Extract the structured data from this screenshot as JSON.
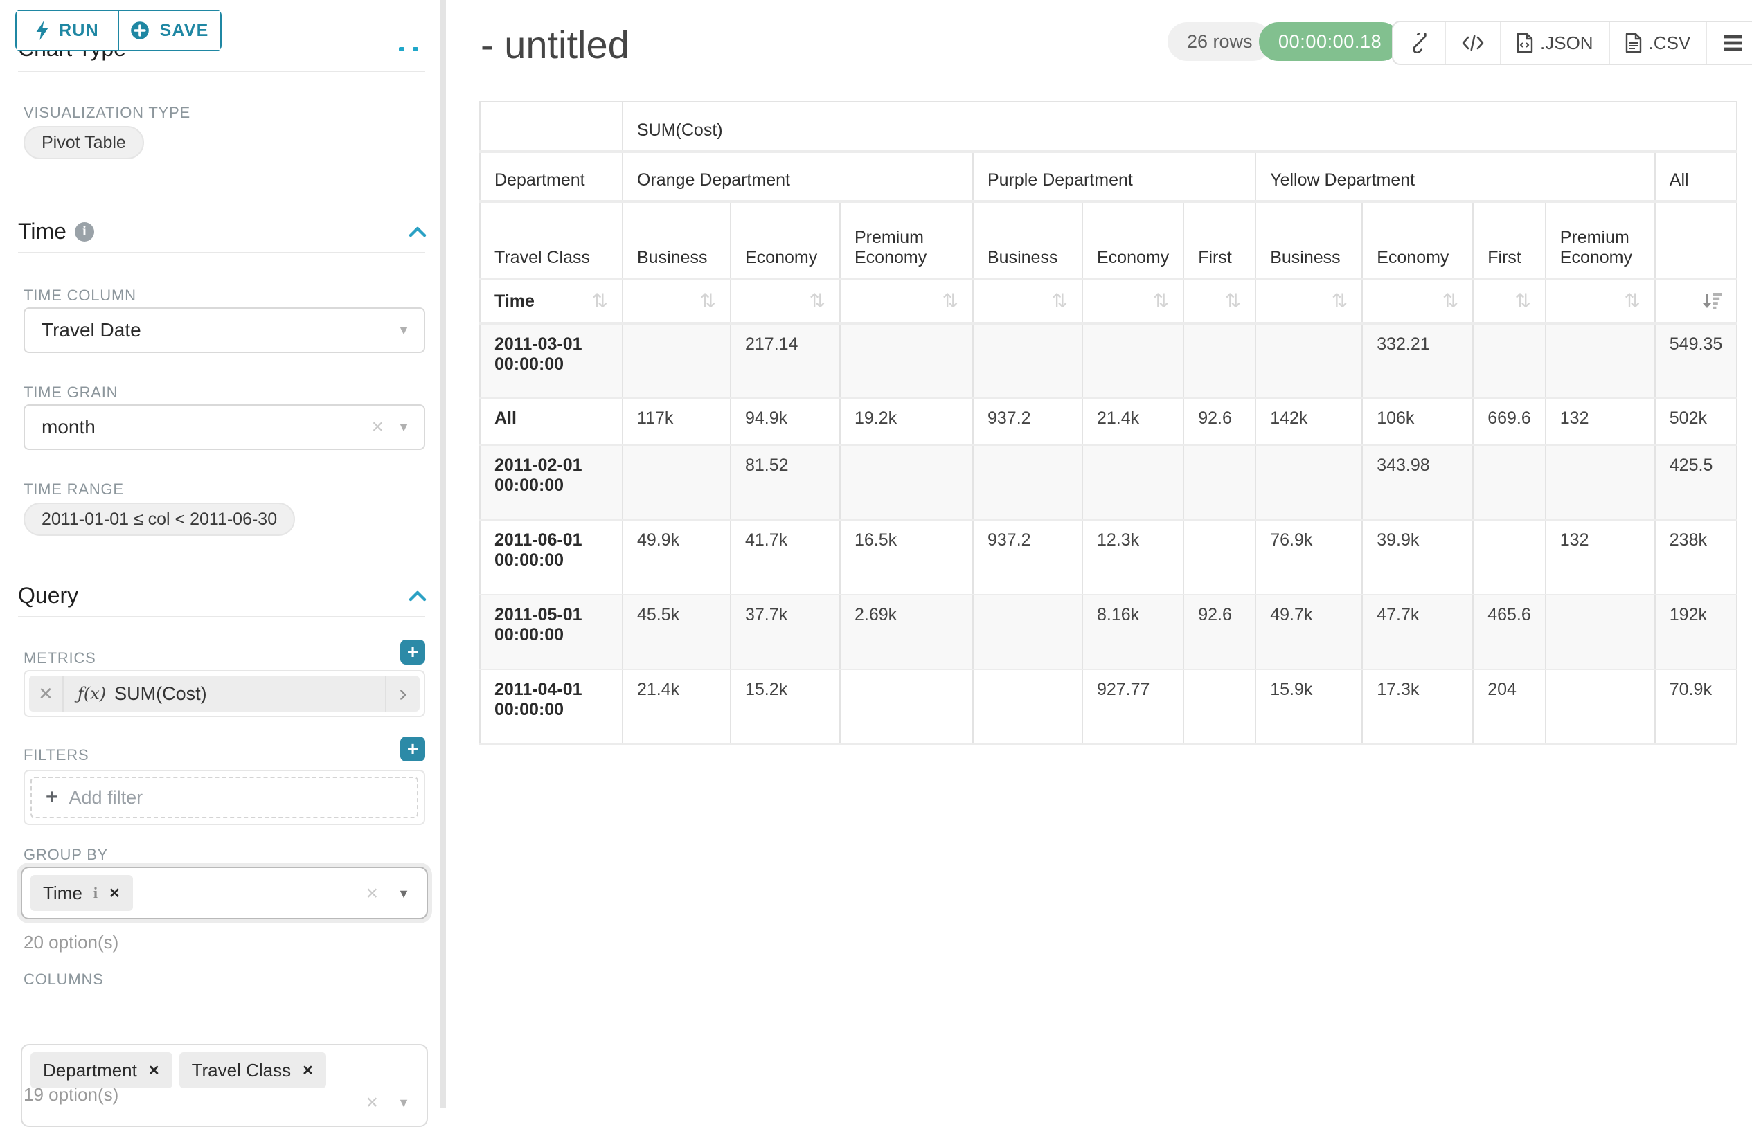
{
  "colors": {
    "accent": "#1f87a3",
    "accent_light": "#2ba1c4",
    "timer_green": "#82c08f",
    "chip_bg": "#ececec"
  },
  "sidebar": {
    "run_label": "RUN",
    "save_label": "SAVE",
    "chart_type_header": "Chart Type",
    "viz_type_label": "VISUALIZATION TYPE",
    "viz_type_value": "Pivot Table",
    "time_section": "Time",
    "time_column_label": "TIME COLUMN",
    "time_column_value": "Travel Date",
    "time_grain_label": "TIME GRAIN",
    "time_grain_value": "month",
    "time_range_label": "TIME RANGE",
    "time_range_value": "2011-01-01 ≤ col < 2011-06-30",
    "query_section": "Query",
    "metrics_label": "METRICS",
    "metric_fx": "ƒ(x)",
    "metric_value": "SUM(Cost)",
    "filters_label": "FILTERS",
    "add_filter_label": "Add filter",
    "group_by_label": "GROUP BY",
    "group_by_chips": [
      "Time"
    ],
    "group_by_options": "20 option(s)",
    "columns_label": "COLUMNS",
    "columns_chips": [
      "Department",
      "Travel Class"
    ],
    "columns_options": "19 option(s)"
  },
  "header": {
    "title": "- untitled",
    "row_count": "26 rows",
    "timer": "00:00:00.18",
    "json_label": ".JSON",
    "csv_label": ".CSV"
  },
  "table": {
    "metric_header": "SUM(Cost)",
    "corner_department": "Department",
    "corner_travel_class": "Travel Class",
    "corner_time": "Time",
    "groups": [
      {
        "label": "Orange Department",
        "cols": [
          "Business",
          "Economy",
          "Premium Economy"
        ]
      },
      {
        "label": "Purple Department",
        "cols": [
          "Business",
          "Economy",
          "First"
        ]
      },
      {
        "label": "Yellow Department",
        "cols": [
          "Business",
          "Economy",
          "First",
          "Premium Economy"
        ]
      },
      {
        "label": "All",
        "cols": [
          ""
        ]
      }
    ],
    "rows": [
      {
        "label": "2011-03-01 00:00:00",
        "values": [
          "",
          "217.14",
          "",
          "",
          "",
          "",
          "",
          "332.21",
          "",
          "",
          "549.35"
        ]
      },
      {
        "label": "All",
        "values": [
          "117k",
          "94.9k",
          "19.2k",
          "937.2",
          "21.4k",
          "92.6",
          "142k",
          "106k",
          "669.6",
          "132",
          "502k"
        ]
      },
      {
        "label": "2011-02-01 00:00:00",
        "values": [
          "",
          "81.52",
          "",
          "",
          "",
          "",
          "",
          "343.98",
          "",
          "",
          "425.5"
        ]
      },
      {
        "label": "2011-06-01 00:00:00",
        "values": [
          "49.9k",
          "41.7k",
          "16.5k",
          "937.2",
          "12.3k",
          "",
          "76.9k",
          "39.9k",
          "",
          "132",
          "238k"
        ]
      },
      {
        "label": "2011-05-01 00:00:00",
        "values": [
          "45.5k",
          "37.7k",
          "2.69k",
          "",
          "8.16k",
          "92.6",
          "49.7k",
          "47.7k",
          "465.6",
          "",
          "192k"
        ]
      },
      {
        "label": "2011-04-01 00:00:00",
        "values": [
          "21.4k",
          "15.2k",
          "",
          "",
          "927.77",
          "",
          "15.9k",
          "17.3k",
          "204",
          "",
          "70.9k"
        ]
      }
    ]
  }
}
